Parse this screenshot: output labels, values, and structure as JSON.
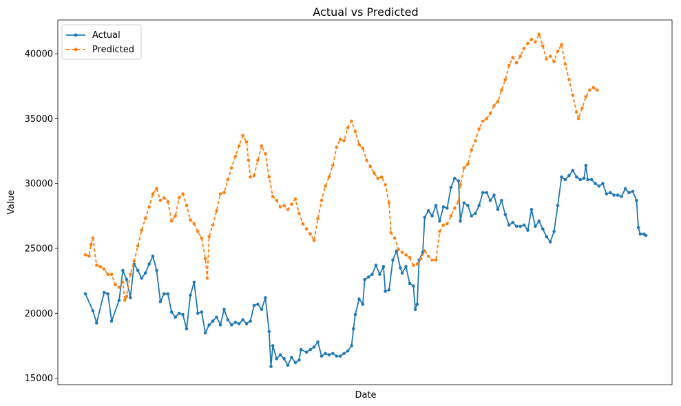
{
  "chart_data": {
    "type": "line",
    "title": "Actual vs Predicted",
    "xlabel": "Date",
    "ylabel": "Value",
    "ylim": [
      14500,
      42600
    ],
    "yticks": [
      15000,
      20000,
      25000,
      30000,
      35000,
      40000
    ],
    "legend_position": "top-left",
    "grid": false,
    "x_index_range": [
      0,
      299
    ],
    "series": [
      {
        "name": "Actual",
        "color": "#1f77b4",
        "style": "solid",
        "marker": "circle",
        "points": [
          [
            0,
            21500
          ],
          [
            4,
            20200
          ],
          [
            6,
            19250
          ],
          [
            10,
            21600
          ],
          [
            12,
            21500
          ],
          [
            14,
            19400
          ],
          [
            18,
            21000
          ],
          [
            20,
            23300
          ],
          [
            22,
            22600
          ],
          [
            24,
            21200
          ],
          [
            26,
            23800
          ],
          [
            28,
            23300
          ],
          [
            30,
            22700
          ],
          [
            32,
            23100
          ],
          [
            34,
            23800
          ],
          [
            36,
            24400
          ],
          [
            38,
            23300
          ],
          [
            40,
            20900
          ],
          [
            42,
            21500
          ],
          [
            44,
            21500
          ],
          [
            46,
            20100
          ],
          [
            48,
            19700
          ],
          [
            50,
            20000
          ],
          [
            52,
            19900
          ],
          [
            54,
            18800
          ],
          [
            56,
            21400
          ],
          [
            58,
            22400
          ],
          [
            60,
            20000
          ],
          [
            62,
            20100
          ],
          [
            64,
            18500
          ],
          [
            66,
            19100
          ],
          [
            68,
            19400
          ],
          [
            70,
            19700
          ],
          [
            72,
            19100
          ],
          [
            74,
            20300
          ],
          [
            76,
            19500
          ],
          [
            78,
            19100
          ],
          [
            80,
            19300
          ],
          [
            82,
            19200
          ],
          [
            84,
            19500
          ],
          [
            86,
            19200
          ],
          [
            88,
            19400
          ],
          [
            90,
            20600
          ],
          [
            92,
            20700
          ],
          [
            94,
            20300
          ],
          [
            96,
            21200
          ],
          [
            98,
            18600
          ],
          [
            99,
            15900
          ],
          [
            100,
            17500
          ],
          [
            102,
            16500
          ],
          [
            104,
            16800
          ],
          [
            106,
            16500
          ],
          [
            108,
            16000
          ],
          [
            110,
            16600
          ],
          [
            112,
            16200
          ],
          [
            114,
            16400
          ],
          [
            115,
            17200
          ],
          [
            118,
            17000
          ],
          [
            120,
            17200
          ],
          [
            122,
            17400
          ],
          [
            124,
            17800
          ],
          [
            126,
            16700
          ],
          [
            128,
            16900
          ],
          [
            130,
            16800
          ],
          [
            132,
            16900
          ],
          [
            134,
            16700
          ],
          [
            136,
            16700
          ],
          [
            138,
            16900
          ],
          [
            140,
            17100
          ],
          [
            142,
            17500
          ],
          [
            143,
            18800
          ],
          [
            144,
            19900
          ],
          [
            146,
            21100
          ],
          [
            148,
            20700
          ],
          [
            149,
            22600
          ],
          [
            151,
            22800
          ],
          [
            153,
            23000
          ],
          [
            155,
            23700
          ],
          [
            157,
            23000
          ],
          [
            159,
            23600
          ],
          [
            160,
            21700
          ],
          [
            162,
            21800
          ],
          [
            164,
            24100
          ],
          [
            166,
            24800
          ],
          [
            168,
            23500
          ],
          [
            169,
            23100
          ],
          [
            171,
            23600
          ],
          [
            173,
            22300
          ],
          [
            175,
            22100
          ],
          [
            176,
            20300
          ],
          [
            177,
            20700
          ],
          [
            178,
            24100
          ],
          [
            180,
            24700
          ],
          [
            181,
            27400
          ],
          [
            183,
            27900
          ],
          [
            185,
            27500
          ],
          [
            187,
            28300
          ],
          [
            189,
            27100
          ],
          [
            191,
            28200
          ],
          [
            193,
            28100
          ],
          [
            195,
            29700
          ],
          [
            197,
            30400
          ],
          [
            199,
            30200
          ],
          [
            200,
            27100
          ],
          [
            202,
            28500
          ],
          [
            204,
            28300
          ],
          [
            206,
            27500
          ],
          [
            208,
            27700
          ],
          [
            210,
            28300
          ],
          [
            212,
            29300
          ],
          [
            214,
            29300
          ],
          [
            216,
            28700
          ],
          [
            218,
            29100
          ],
          [
            220,
            28000
          ],
          [
            222,
            28700
          ],
          [
            224,
            27600
          ],
          [
            226,
            26800
          ],
          [
            228,
            27000
          ],
          [
            230,
            26700
          ],
          [
            232,
            26700
          ],
          [
            234,
            26800
          ],
          [
            236,
            26400
          ],
          [
            238,
            28000
          ],
          [
            240,
            26700
          ],
          [
            242,
            27100
          ],
          [
            244,
            26500
          ],
          [
            246,
            25900
          ],
          [
            248,
            25500
          ],
          [
            250,
            26300
          ],
          [
            252,
            28300
          ],
          [
            254,
            30500
          ],
          [
            256,
            30300
          ],
          [
            258,
            30600
          ],
          [
            260,
            31000
          ],
          [
            262,
            30500
          ],
          [
            264,
            30300
          ],
          [
            266,
            30400
          ],
          [
            267,
            31400
          ],
          [
            268,
            30300
          ],
          [
            270,
            30300
          ],
          [
            272,
            30000
          ],
          [
            274,
            29800
          ],
          [
            276,
            30000
          ],
          [
            278,
            29200
          ],
          [
            280,
            29300
          ],
          [
            282,
            29100
          ],
          [
            284,
            29100
          ],
          [
            286,
            29000
          ],
          [
            288,
            29600
          ],
          [
            290,
            29300
          ],
          [
            292,
            29400
          ],
          [
            294,
            28700
          ],
          [
            295,
            26600
          ],
          [
            296,
            26100
          ],
          [
            298,
            26100
          ],
          [
            299,
            26000
          ]
        ]
      },
      {
        "name": "Predicted",
        "color": "#ff7f0e",
        "style": "dashed",
        "marker": "circle",
        "points": [
          [
            0,
            24500
          ],
          [
            2,
            24400
          ],
          [
            3,
            25300
          ],
          [
            4,
            25800
          ],
          [
            6,
            23700
          ],
          [
            8,
            23600
          ],
          [
            10,
            23400
          ],
          [
            12,
            23000
          ],
          [
            14,
            23000
          ],
          [
            16,
            22200
          ],
          [
            18,
            22000
          ],
          [
            20,
            22400
          ],
          [
            21,
            21000
          ],
          [
            22,
            21300
          ],
          [
            24,
            23000
          ],
          [
            26,
            24000
          ],
          [
            28,
            25200
          ],
          [
            30,
            26400
          ],
          [
            32,
            27300
          ],
          [
            34,
            28200
          ],
          [
            36,
            29200
          ],
          [
            38,
            29600
          ],
          [
            40,
            28700
          ],
          [
            42,
            28900
          ],
          [
            44,
            28600
          ],
          [
            46,
            27100
          ],
          [
            48,
            27500
          ],
          [
            50,
            28900
          ],
          [
            52,
            29200
          ],
          [
            54,
            28300
          ],
          [
            56,
            27200
          ],
          [
            58,
            26900
          ],
          [
            60,
            26300
          ],
          [
            62,
            25800
          ],
          [
            64,
            24200
          ],
          [
            65,
            22700
          ],
          [
            66,
            25900
          ],
          [
            68,
            26800
          ],
          [
            70,
            27900
          ],
          [
            72,
            29200
          ],
          [
            74,
            29300
          ],
          [
            76,
            30300
          ],
          [
            78,
            31200
          ],
          [
            80,
            32100
          ],
          [
            82,
            32900
          ],
          [
            84,
            33700
          ],
          [
            86,
            33200
          ],
          [
            87,
            31800
          ],
          [
            88,
            30500
          ],
          [
            90,
            30600
          ],
          [
            92,
            31800
          ],
          [
            94,
            32900
          ],
          [
            96,
            32300
          ],
          [
            98,
            30500
          ],
          [
            100,
            29000
          ],
          [
            102,
            28700
          ],
          [
            104,
            28200
          ],
          [
            106,
            28300
          ],
          [
            108,
            28000
          ],
          [
            110,
            28400
          ],
          [
            112,
            28800
          ],
          [
            114,
            27700
          ],
          [
            116,
            26900
          ],
          [
            118,
            26500
          ],
          [
            120,
            26100
          ],
          [
            122,
            25600
          ],
          [
            124,
            27300
          ],
          [
            126,
            28700
          ],
          [
            128,
            29800
          ],
          [
            130,
            30500
          ],
          [
            132,
            31400
          ],
          [
            134,
            32800
          ],
          [
            136,
            33400
          ],
          [
            138,
            33300
          ],
          [
            140,
            34300
          ],
          [
            142,
            34800
          ],
          [
            144,
            34000
          ],
          [
            146,
            33000
          ],
          [
            148,
            32700
          ],
          [
            150,
            31800
          ],
          [
            152,
            31300
          ],
          [
            154,
            30800
          ],
          [
            156,
            30400
          ],
          [
            158,
            30500
          ],
          [
            160,
            29900
          ],
          [
            162,
            28500
          ],
          [
            163,
            26200
          ],
          [
            165,
            25800
          ],
          [
            167,
            24900
          ],
          [
            169,
            24700
          ],
          [
            171,
            24500
          ],
          [
            173,
            24300
          ],
          [
            175,
            23700
          ],
          [
            177,
            23800
          ],
          [
            179,
            24200
          ],
          [
            181,
            24800
          ],
          [
            183,
            24400
          ],
          [
            185,
            24100
          ],
          [
            187,
            24100
          ],
          [
            189,
            26300
          ],
          [
            191,
            26800
          ],
          [
            193,
            26900
          ],
          [
            195,
            27500
          ],
          [
            197,
            28100
          ],
          [
            199,
            28600
          ],
          [
            200,
            29900
          ],
          [
            202,
            31200
          ],
          [
            204,
            31500
          ],
          [
            206,
            32600
          ],
          [
            208,
            33300
          ],
          [
            210,
            34200
          ],
          [
            212,
            34800
          ],
          [
            214,
            35000
          ],
          [
            216,
            35400
          ],
          [
            218,
            36000
          ],
          [
            220,
            36300
          ],
          [
            222,
            37200
          ],
          [
            224,
            38000
          ],
          [
            226,
            39100
          ],
          [
            228,
            39700
          ],
          [
            230,
            39300
          ],
          [
            232,
            39800
          ],
          [
            234,
            40400
          ],
          [
            236,
            40800
          ],
          [
            238,
            41100
          ],
          [
            240,
            40900
          ],
          [
            242,
            41500
          ],
          [
            244,
            40600
          ],
          [
            246,
            39600
          ],
          [
            248,
            39800
          ],
          [
            250,
            39400
          ],
          [
            252,
            40200
          ],
          [
            254,
            40700
          ],
          [
            256,
            39200
          ],
          [
            258,
            38000
          ],
          [
            260,
            36800
          ],
          [
            262,
            35500
          ],
          [
            263,
            35000
          ],
          [
            265,
            35800
          ],
          [
            267,
            36700
          ],
          [
            269,
            37200
          ],
          [
            271,
            37400
          ],
          [
            273,
            37200
          ]
        ]
      }
    ]
  }
}
